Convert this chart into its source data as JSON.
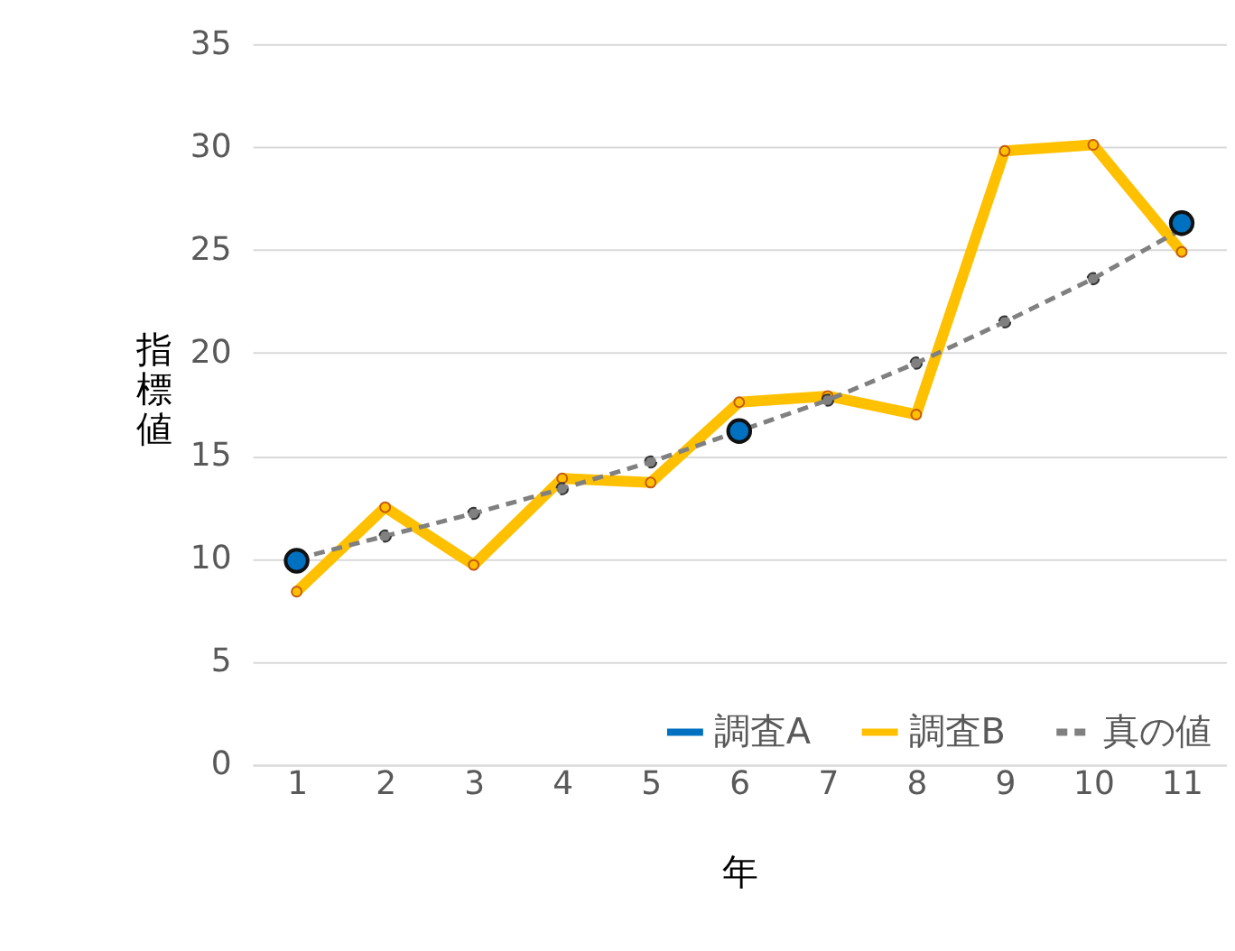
{
  "chart_data": {
    "type": "line",
    "xlabel": "年",
    "ylabel": "指標値",
    "categories": [
      "1",
      "2",
      "3",
      "4",
      "5",
      "6",
      "7",
      "8",
      "9",
      "10",
      "11"
    ],
    "series": [
      {
        "name": "調査A",
        "color": "#0070c0",
        "marker": "circle",
        "line_style": "solid",
        "values": [
          9.9,
          null,
          null,
          null,
          null,
          16.2,
          null,
          null,
          null,
          null,
          26.3
        ]
      },
      {
        "name": "調査B",
        "color": "#ffc000",
        "marker": "circle",
        "line_style": "solid",
        "values": [
          8.4,
          12.5,
          9.7,
          13.9,
          13.7,
          17.6,
          17.9,
          17.0,
          29.8,
          30.1,
          24.9
        ]
      },
      {
        "name": "真の値",
        "color": "#808080",
        "marker": "circle",
        "line_style": "dashed",
        "values": [
          10.0,
          11.1,
          12.2,
          13.4,
          14.7,
          16.2,
          17.7,
          19.5,
          21.5,
          23.6,
          26.0
        ]
      }
    ],
    "ylim": [
      0,
      35
    ],
    "yticks": [
      0,
      5,
      10,
      15,
      20,
      25,
      30,
      35
    ],
    "grid": "y",
    "legend": "bottom right"
  }
}
